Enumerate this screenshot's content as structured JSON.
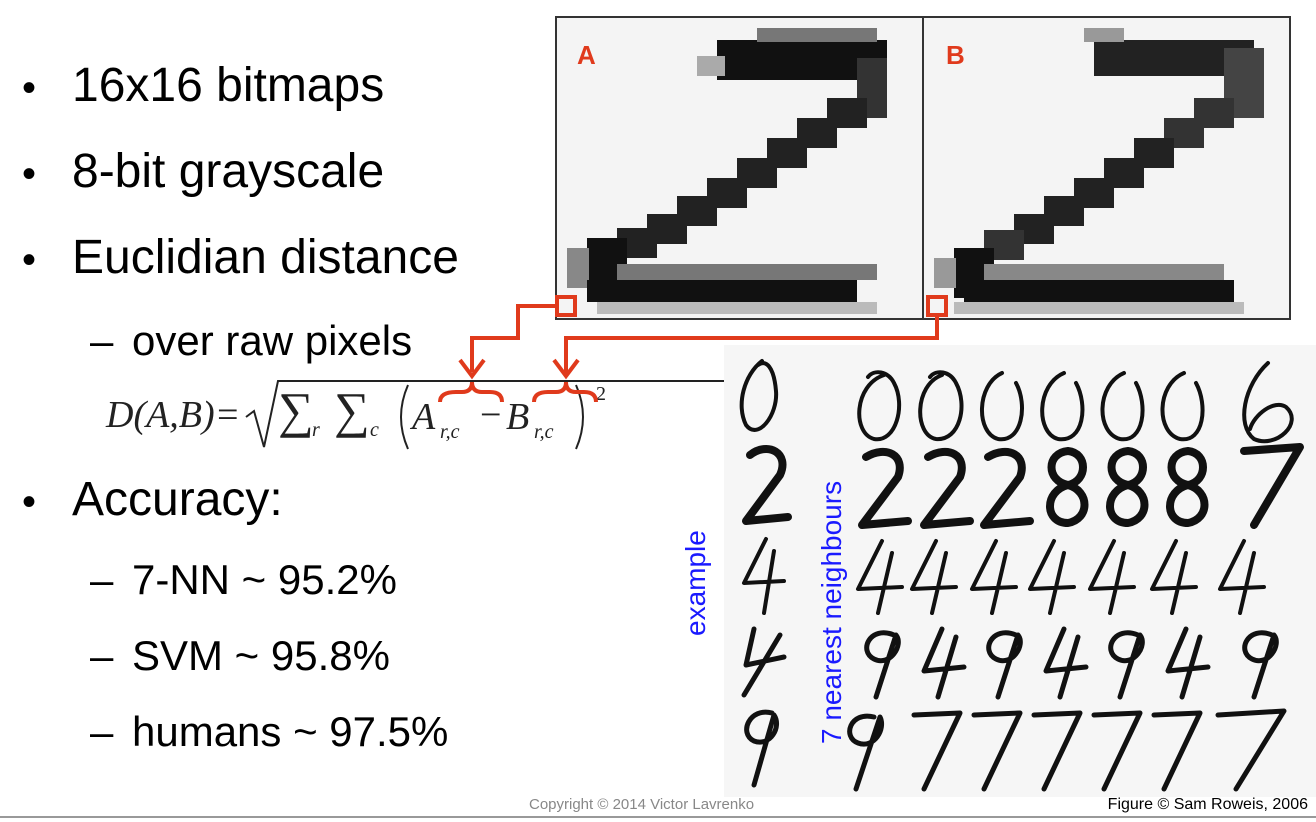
{
  "bullets": [
    {
      "marker": "•",
      "text": "16x16 bitmaps"
    },
    {
      "marker": "•",
      "text": "8-bit grayscale"
    },
    {
      "marker": "•",
      "text": "Euclidian distance"
    },
    {
      "marker": "•",
      "text": "Accuracy:"
    }
  ],
  "sub_bullets": [
    {
      "marker": "–",
      "text": "over raw pixels"
    },
    {
      "marker": "–",
      "text": "7-NN ~ 95.2%"
    },
    {
      "marker": "–",
      "text": "SVM ~ 95.8%"
    },
    {
      "marker": "–",
      "text": "humans ~ 97.5%"
    }
  ],
  "formula": {
    "lhs": "D(A,B)=",
    "sum_r": "∑",
    "sub_r": "r",
    "sum_c": "∑",
    "sub_c": "c",
    "term_a": "A",
    "sub_a": "r,c",
    "minus": "−",
    "term_b": "B",
    "sub_b": "r,c",
    "power": "2"
  },
  "panels": {
    "a_label": "A",
    "b_label": "B"
  },
  "digits_figure": {
    "rows": [
      "0",
      "2",
      "4",
      "4",
      "9"
    ],
    "neighbour_rows": [
      "0000006",
      "2228887",
      "4444444",
      "9494949",
      "9777777"
    ]
  },
  "labels": {
    "example": "example",
    "neighbours": "7 nearest neighbours"
  },
  "footer": {
    "copyright": "Copyright © 2014 Victor Lavrenko",
    "figure_credit": "Figure © Sam Roweis, 2006"
  },
  "colors": {
    "accent_red": "#e03a1c",
    "label_blue": "#1a1aff"
  }
}
